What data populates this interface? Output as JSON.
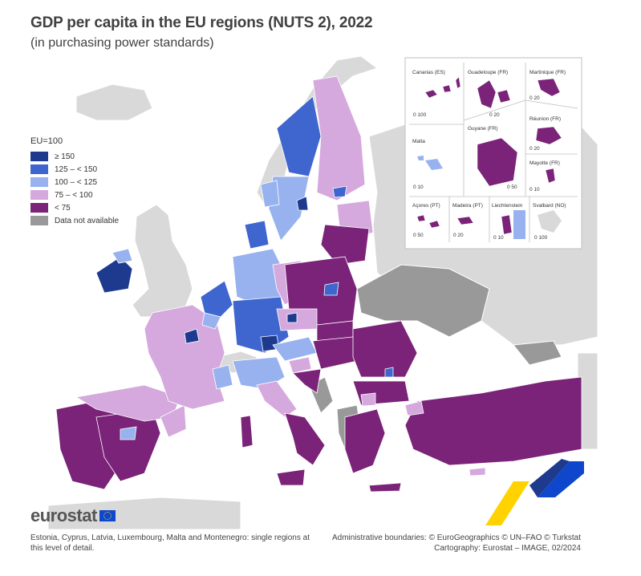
{
  "title": "GDP per capita in the EU regions (NUTS 2), 2022",
  "subtitle": "(in purchasing power standards)",
  "legend": {
    "title": "EU=100",
    "items": [
      {
        "label": "≥ 150",
        "color": "#1d3a8f"
      },
      {
        "label": "125 – < 150",
        "color": "#3f66cf"
      },
      {
        "label": "100 – < 125",
        "color": "#97b2ef"
      },
      {
        "label": "75 – < 100",
        "color": "#d5a8de"
      },
      {
        "label": "< 75",
        "color": "#7a2378"
      },
      {
        "label": "Data not available",
        "color": "#999999"
      }
    ]
  },
  "insets": {
    "canarias": "Canarias (ES)",
    "guadeloupe": "Guadeloupe (FR)",
    "martinique": "Martinique (FR)",
    "reunion": "Réunion (FR)",
    "malta": "Malta",
    "guyane": "Guyane (FR)",
    "mayotte": "Mayotte (FR)",
    "acores": "Açores (PT)",
    "madeira": "Madeira (PT)",
    "liechtenstein": "Liechtenstein",
    "svalbard": "Svalbard (NO)",
    "scale_canarias": "0  100",
    "scale_guadeloupe": "0  20",
    "scale_martinique": "0  20",
    "scale_reunion": "0  20",
    "scale_malta": "0  10",
    "scale_guyane": "0  50",
    "scale_mayotte": "0  10",
    "scale_acores": "0  50",
    "scale_madeira": "0  20",
    "scale_liechtenstein": "0  10",
    "scale_svalbard": "0 100"
  },
  "logo": "eurostat",
  "footnote_left": "Estonia, Cyprus, Latvia, Luxembourg, Malta and Montenegro: single regions at this level of detail.",
  "footnote_right_1": "Administrative boundaries: © EuroGeographics © UN–FAO © Turkstat",
  "footnote_right_2": "Cartography: Eurostat – IMAGE, 02/2024",
  "colors": {
    "sea": "#ffffff",
    "non_eu_land": "#d9d9d9",
    "no_data": "#999999",
    "c150": "#1d3a8f",
    "c125": "#3f66cf",
    "c100": "#97b2ef",
    "c75": "#d5a8de",
    "clow": "#7a2378",
    "accent_yellow": "#ffd200",
    "accent_blue": "#0e47cb"
  }
}
